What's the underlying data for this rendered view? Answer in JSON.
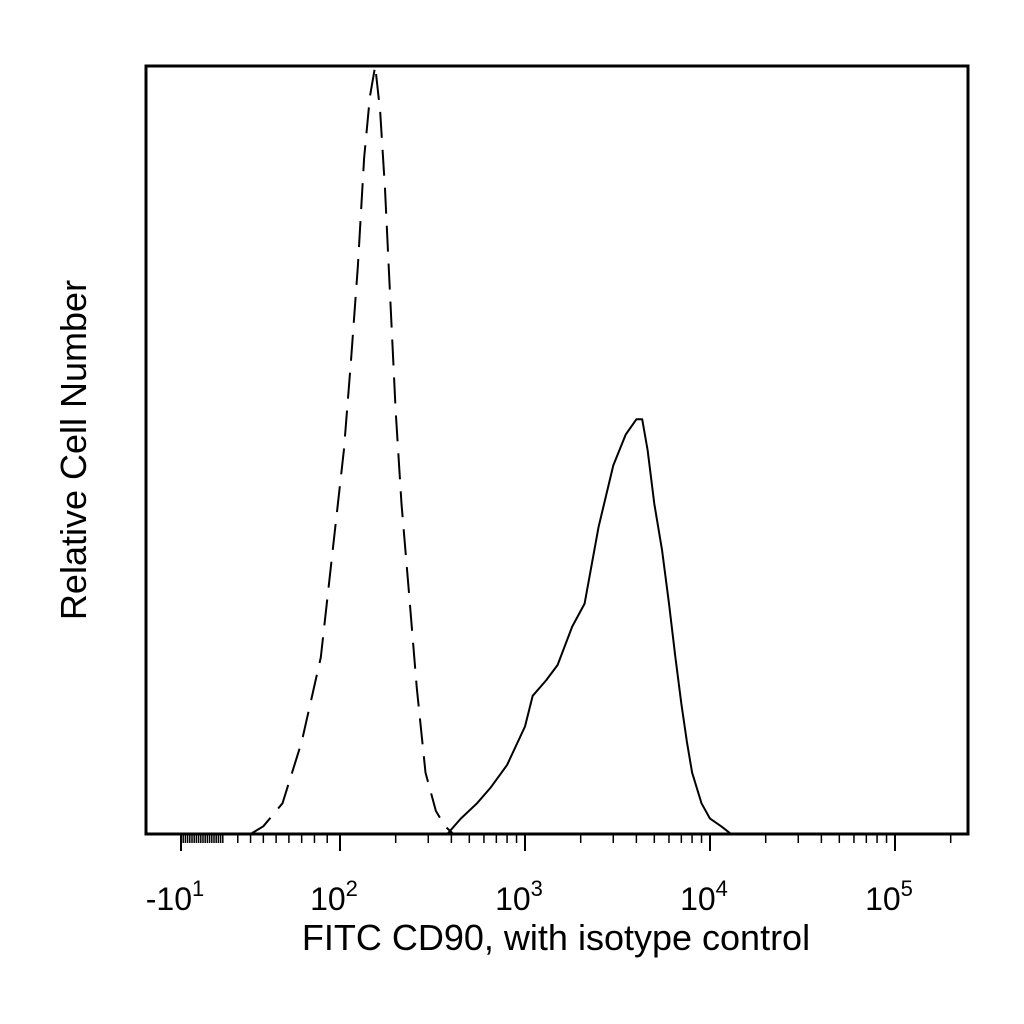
{
  "chart_data": {
    "type": "histogram",
    "xscale": "biexponential",
    "xlim": [
      -20,
      250000
    ],
    "ylim": [
      0,
      100
    ],
    "xlabel": "FITC CD90, with isotype control",
    "ylabel": "Relative Cell Number",
    "grid": false,
    "legend": "none",
    "tick_labels": [
      {
        "base": "-10",
        "exp": "1"
      },
      {
        "base": "10",
        "exp": "2"
      },
      {
        "base": "10",
        "exp": "3"
      },
      {
        "base": "10",
        "exp": "4"
      },
      {
        "base": "10",
        "exp": "5"
      }
    ],
    "series": [
      {
        "style": "dashed",
        "color": "#000000",
        "x": [
          30,
          40,
          55,
          70,
          85,
          95,
          105,
          115,
          125,
          135,
          145,
          155,
          165,
          175,
          185,
          200,
          215,
          235,
          260,
          290,
          330,
          370,
          410
        ],
        "y": [
          0,
          1,
          4,
          12,
          23,
          38,
          50,
          62,
          74,
          88,
          96,
          100,
          94,
          84,
          72,
          55,
          43,
          32,
          19,
          8,
          3,
          1,
          0
        ]
      },
      {
        "style": "solid",
        "color": "#000000",
        "x": [
          380,
          450,
          550,
          650,
          800,
          1000,
          1100,
          1300,
          1500,
          1800,
          2100,
          2500,
          3000,
          3500,
          4000,
          4300,
          4600,
          5000,
          5500,
          6000,
          6500,
          7000,
          7500,
          8000,
          9000,
          10000,
          11500,
          13000
        ],
        "y": [
          0,
          2,
          4,
          6,
          9,
          14,
          18,
          20,
          22,
          27,
          30,
          40,
          48,
          52,
          54,
          54,
          50,
          43,
          37,
          30,
          23,
          17,
          12,
          8,
          4,
          2,
          1,
          0
        ]
      }
    ]
  }
}
